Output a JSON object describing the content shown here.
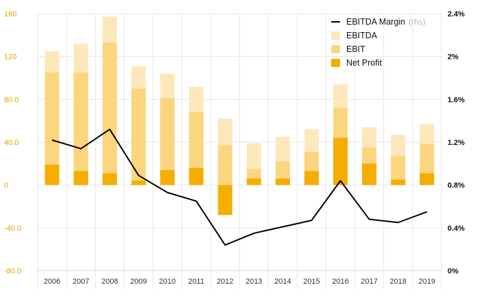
{
  "chart_data": {
    "type": "bar",
    "categories": [
      "2006",
      "2007",
      "2008",
      "2009",
      "2010",
      "2011",
      "2012",
      "2013",
      "2014",
      "2015",
      "2016",
      "2017",
      "2018",
      "2019"
    ],
    "series": [
      {
        "name": "EBITDA",
        "kind": "bar",
        "axis": "left",
        "color": "#fde8bc",
        "values": [
          125,
          132,
          157,
          111,
          104,
          92,
          62,
          39,
          45,
          52,
          94,
          54,
          47,
          57
        ]
      },
      {
        "name": "EBIT",
        "kind": "bar",
        "axis": "left",
        "color": "#fcd57f",
        "values": [
          105,
          105,
          133,
          90,
          81,
          68,
          37,
          15,
          22,
          31,
          72,
          35,
          27,
          38
        ]
      },
      {
        "name": "Net Profit",
        "kind": "bar",
        "axis": "left",
        "color": "#f5ad00",
        "values": [
          19,
          13,
          11,
          4,
          14,
          16,
          -28,
          6,
          6,
          13,
          44,
          20,
          5,
          11
        ]
      },
      {
        "name": "EBITDA Margin",
        "kind": "line",
        "axis": "right",
        "color": "#000000",
        "values": [
          1.22,
          1.14,
          1.32,
          0.89,
          0.73,
          0.65,
          0.24,
          0.35,
          0.41,
          0.47,
          0.84,
          0.48,
          0.45,
          0.55
        ]
      }
    ],
    "ylim_left": [
      -80,
      160
    ],
    "yticks_left": [
      "160",
      "120",
      "80.0",
      "40.0",
      "0",
      "-40.0",
      "-80.0"
    ],
    "yticks_left_values": [
      160,
      120,
      80,
      40,
      0,
      -40,
      -80
    ],
    "ylim_right": [
      0,
      2.4
    ],
    "yticks_right": [
      "2.4%",
      "2%",
      "1.6%",
      "1.2%",
      "0.8%",
      "0.4%",
      "0%"
    ],
    "yticks_right_values": [
      2.4,
      2.0,
      1.6,
      1.2,
      0.8,
      0.4,
      0
    ],
    "right_unit": "%",
    "grid": true,
    "legend": {
      "placement": "top-right",
      "items": [
        {
          "label": "EBITDA Margin",
          "suffix": "(rhs)",
          "symbol": "line",
          "color": "#000000"
        },
        {
          "label": "EBITDA",
          "suffix": "",
          "symbol": "box",
          "color": "#fde8bc"
        },
        {
          "label": "EBIT",
          "suffix": "",
          "symbol": "box",
          "color": "#fcd57f"
        },
        {
          "label": "Net Profit",
          "suffix": "",
          "symbol": "box",
          "color": "#f5ad00"
        }
      ]
    },
    "colors": {
      "left_ticks": "#e8a200",
      "right_ticks": "#111111",
      "grid": "#e6e6e6"
    }
  }
}
